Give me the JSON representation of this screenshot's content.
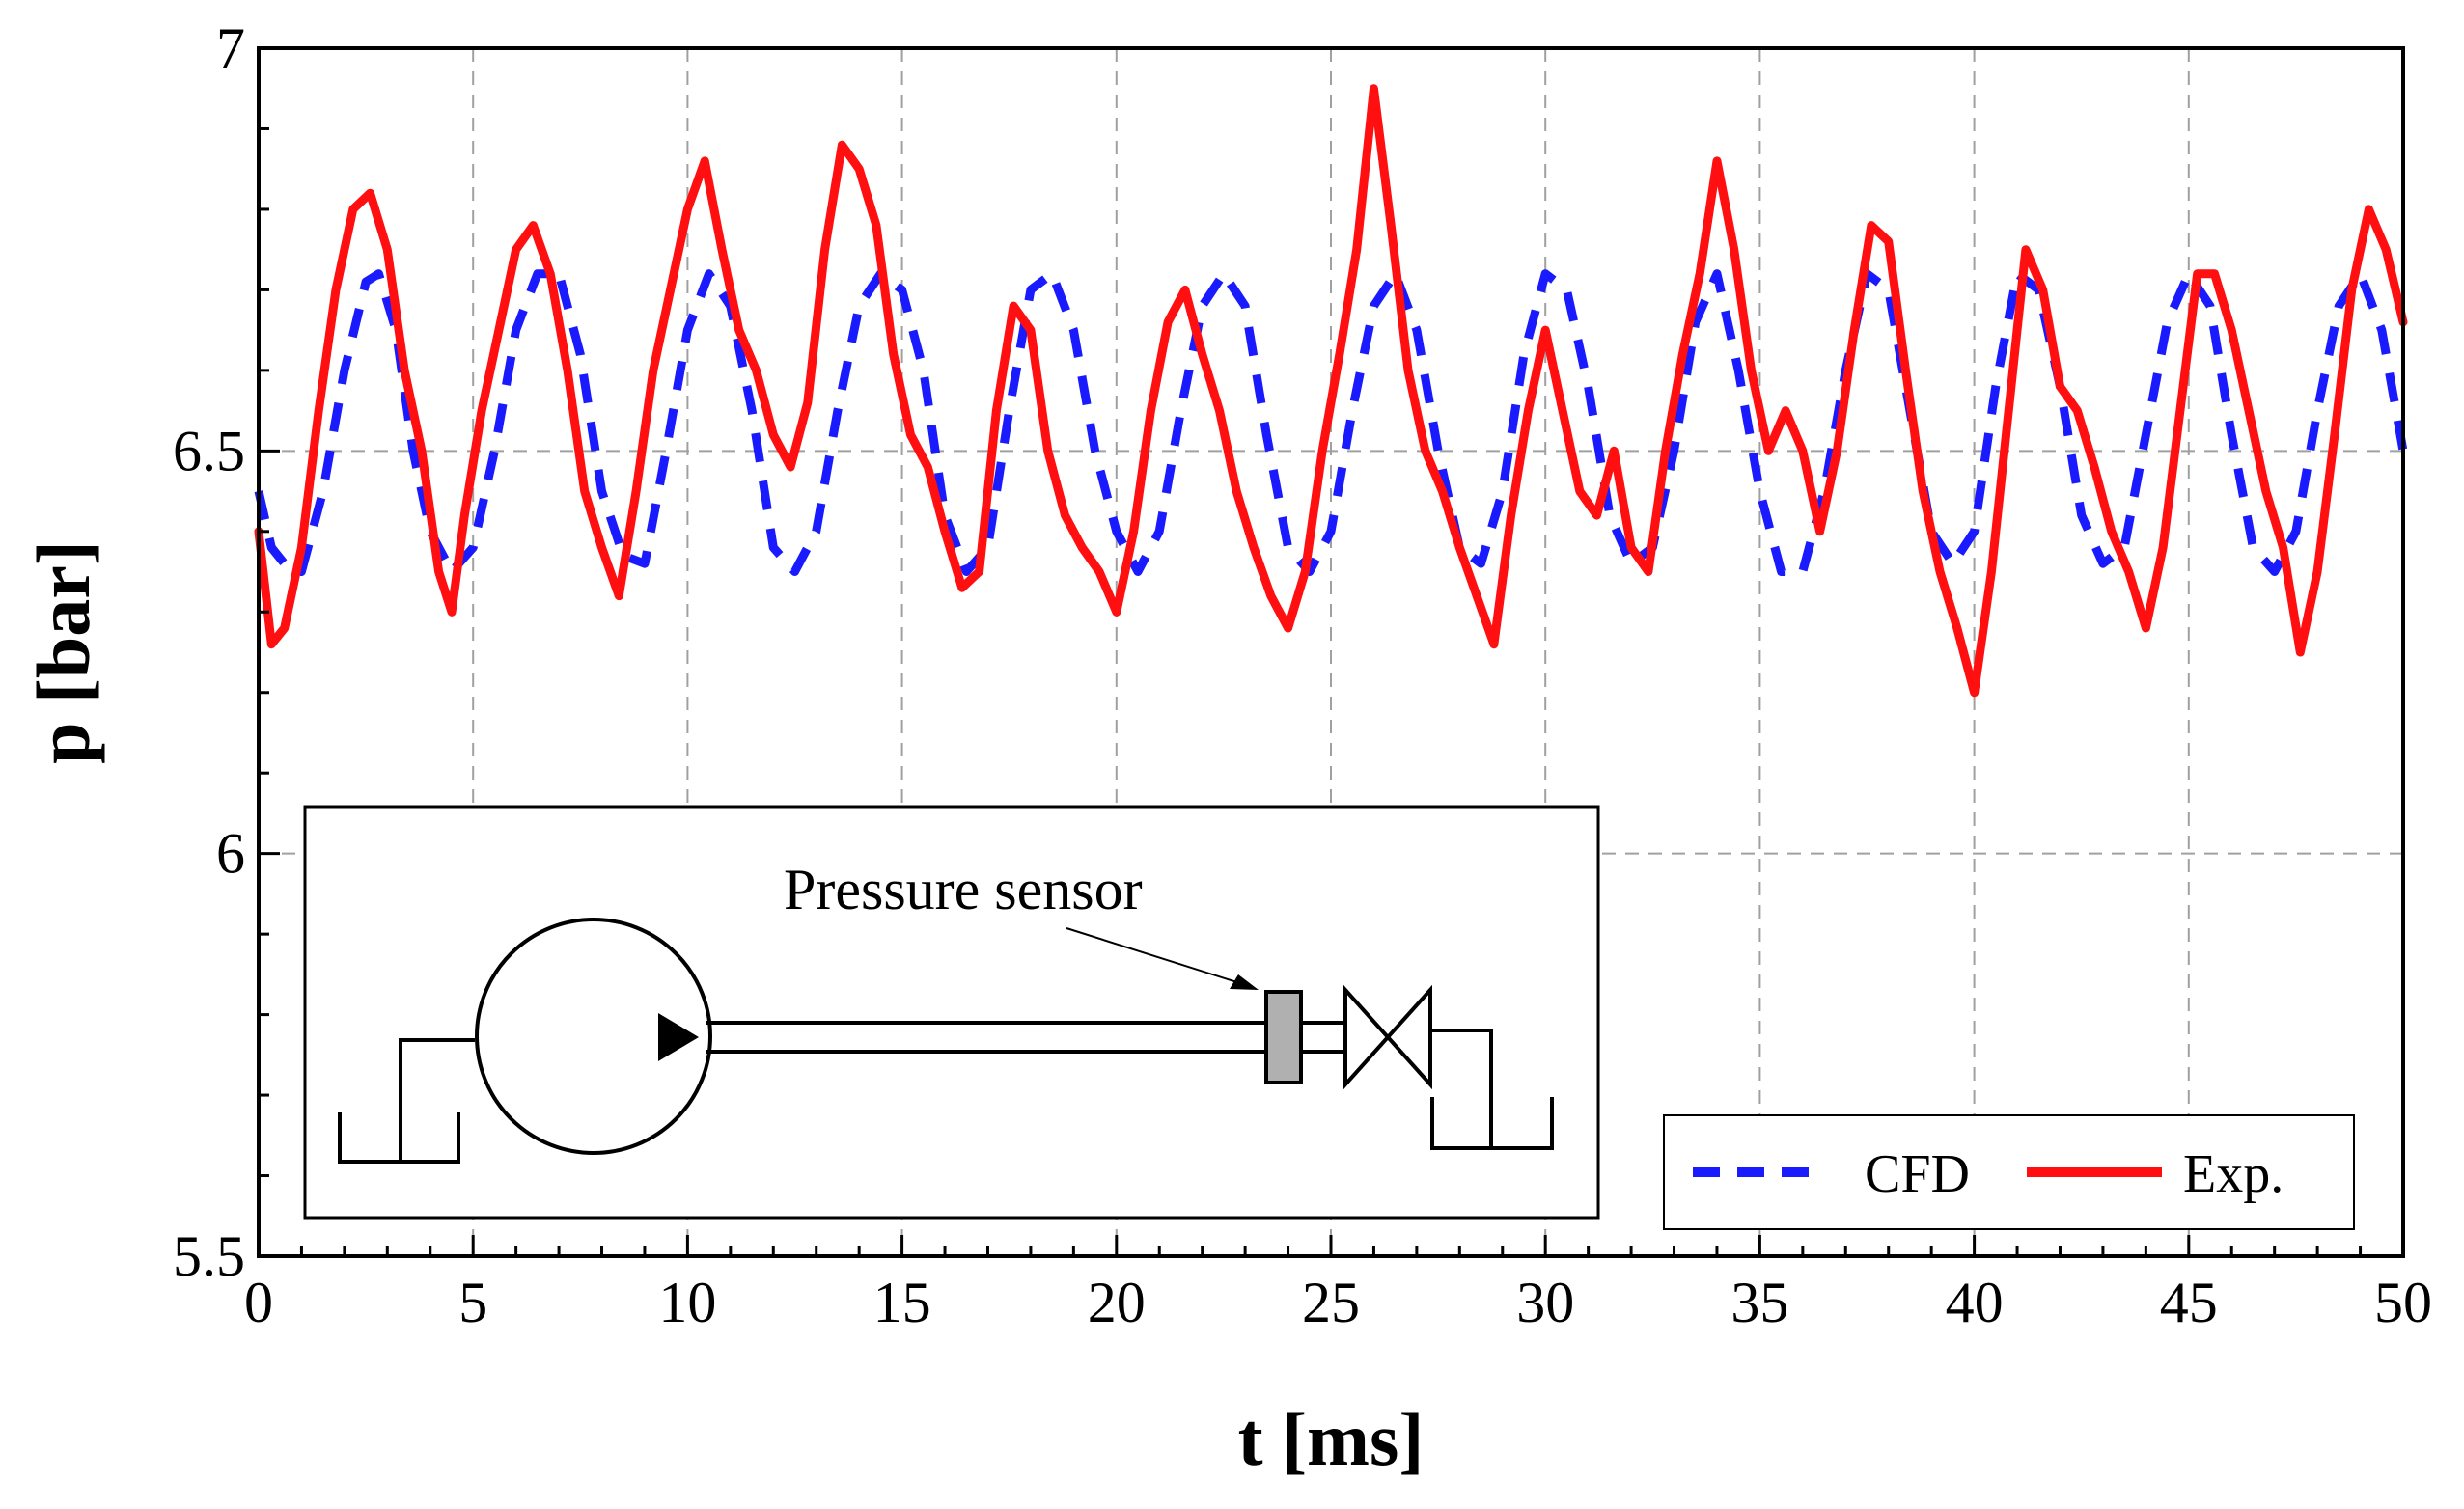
{
  "chart_data": {
    "type": "line",
    "title": "",
    "xlabel": "t [ms]",
    "ylabel": "p [bar]",
    "xlim": [
      0,
      50
    ],
    "ylim": [
      5.5,
      7
    ],
    "x_ticks": [
      "0",
      "5",
      "10",
      "15",
      "20",
      "25",
      "30",
      "35",
      "40",
      "45",
      "50"
    ],
    "y_ticks": [
      "5.5",
      "6",
      "6.5",
      "7"
    ],
    "grid": "dashed gray lines at major ticks",
    "legend_position": "bottom-right",
    "series": [
      {
        "name": "CFD",
        "color": "#1a1aff",
        "style": "dashed",
        "x": [
          0,
          0.3,
          0.6,
          1.0,
          1.5,
          2.0,
          2.5,
          2.8,
          3.2,
          3.6,
          4.0,
          4.5,
          5.0,
          5.5,
          6.0,
          6.5,
          7.0,
          7.5,
          8.0,
          8.5,
          9.0,
          9.5,
          10.0,
          10.5,
          11.0,
          11.5,
          12.0,
          12.5,
          13.0,
          13.5,
          14.0,
          14.5,
          15.0,
          15.5,
          16.0,
          16.5,
          17.0,
          17.5,
          18.0,
          18.5,
          19.0,
          19.5,
          20.0,
          20.5,
          21.0,
          21.5,
          22.0,
          22.5,
          23.0,
          23.5,
          24.0,
          24.5,
          25.0,
          25.5,
          26.0,
          26.5,
          27.0,
          27.5,
          28.0,
          28.5,
          29.0,
          29.5,
          30.0,
          30.5,
          31.0,
          31.5,
          32.0,
          32.5,
          33.0,
          33.5,
          34.0,
          34.5,
          35.0,
          35.5,
          36.0,
          36.5,
          37.0,
          37.5,
          38.0,
          38.5,
          39.0,
          39.5,
          40.0,
          40.5,
          41.0,
          41.5,
          42.0,
          42.5,
          43.0,
          43.5,
          44.0,
          44.5,
          45.0,
          45.5,
          46.0,
          46.5,
          47.0,
          47.5,
          48.0,
          48.5,
          49.0,
          49.5,
          50.0
        ],
        "values": [
          6.45,
          6.38,
          6.36,
          6.35,
          6.45,
          6.6,
          6.71,
          6.72,
          6.65,
          6.5,
          6.4,
          6.35,
          6.38,
          6.5,
          6.65,
          6.72,
          6.72,
          6.62,
          6.45,
          6.37,
          6.36,
          6.5,
          6.65,
          6.72,
          6.68,
          6.55,
          6.38,
          6.35,
          6.4,
          6.55,
          6.68,
          6.72,
          6.7,
          6.6,
          6.42,
          6.35,
          6.38,
          6.55,
          6.7,
          6.72,
          6.65,
          6.5,
          6.4,
          6.35,
          6.4,
          6.55,
          6.68,
          6.72,
          6.68,
          6.52,
          6.38,
          6.35,
          6.4,
          6.55,
          6.68,
          6.72,
          6.65,
          6.5,
          6.38,
          6.36,
          6.45,
          6.62,
          6.72,
          6.7,
          6.58,
          6.42,
          6.36,
          6.38,
          6.5,
          6.66,
          6.72,
          6.6,
          6.45,
          6.35,
          6.35,
          6.45,
          6.6,
          6.72,
          6.7,
          6.55,
          6.4,
          6.36,
          6.4,
          6.58,
          6.72,
          6.7,
          6.58,
          6.42,
          6.36,
          6.38,
          6.52,
          6.66,
          6.72,
          6.68,
          6.52,
          6.38,
          6.35,
          6.4,
          6.55,
          6.68,
          6.72,
          6.65,
          6.5
        ]
      },
      {
        "name": "Exp.",
        "color": "#ff0f0f",
        "style": "solid",
        "x": [
          0,
          0.3,
          0.6,
          1.0,
          1.4,
          1.8,
          2.2,
          2.6,
          3.0,
          3.4,
          3.8,
          4.2,
          4.5,
          4.8,
          5.2,
          5.6,
          6.0,
          6.4,
          6.8,
          7.2,
          7.6,
          8.0,
          8.4,
          8.8,
          9.2,
          9.6,
          10.0,
          10.4,
          10.8,
          11.2,
          11.6,
          12.0,
          12.4,
          12.8,
          13.2,
          13.6,
          14.0,
          14.4,
          14.8,
          15.2,
          15.6,
          16.0,
          16.4,
          16.8,
          17.2,
          17.6,
          18.0,
          18.4,
          18.8,
          19.2,
          19.6,
          20.0,
          20.4,
          20.8,
          21.2,
          21.6,
          22.0,
          22.4,
          22.8,
          23.2,
          23.6,
          24.0,
          24.4,
          24.8,
          25.2,
          25.6,
          26.0,
          26.4,
          26.8,
          27.2,
          27.6,
          28.0,
          28.4,
          28.8,
          29.2,
          29.6,
          30.0,
          30.4,
          30.8,
          31.2,
          31.6,
          32.0,
          32.4,
          32.8,
          33.2,
          33.6,
          34.0,
          34.4,
          34.8,
          35.2,
          35.6,
          36.0,
          36.4,
          36.8,
          37.2,
          37.6,
          38.0,
          38.4,
          38.8,
          39.2,
          39.6,
          40.0,
          40.4,
          40.8,
          41.2,
          41.6,
          42.0,
          42.4,
          42.8,
          43.2,
          43.6,
          44.0,
          44.4,
          44.8,
          45.2,
          45.6,
          46.0,
          46.4,
          46.8,
          47.2,
          47.6,
          48.0,
          48.4,
          48.8,
          49.2,
          49.6,
          50.0
        ],
        "values": [
          6.4,
          6.26,
          6.28,
          6.38,
          6.55,
          6.7,
          6.8,
          6.82,
          6.75,
          6.6,
          6.5,
          6.35,
          6.3,
          6.42,
          6.55,
          6.65,
          6.75,
          6.78,
          6.72,
          6.6,
          6.45,
          6.38,
          6.32,
          6.45,
          6.6,
          6.7,
          6.8,
          6.86,
          6.75,
          6.65,
          6.6,
          6.52,
          6.48,
          6.56,
          6.75,
          6.88,
          6.85,
          6.78,
          6.62,
          6.52,
          6.48,
          6.4,
          6.33,
          6.35,
          6.55,
          6.68,
          6.65,
          6.5,
          6.42,
          6.38,
          6.35,
          6.3,
          6.4,
          6.55,
          6.66,
          6.7,
          6.62,
          6.55,
          6.45,
          6.38,
          6.32,
          6.28,
          6.35,
          6.5,
          6.62,
          6.75,
          6.95,
          6.78,
          6.6,
          6.5,
          6.45,
          6.38,
          6.32,
          6.26,
          6.42,
          6.55,
          6.65,
          6.55,
          6.45,
          6.42,
          6.5,
          6.38,
          6.35,
          6.5,
          6.62,
          6.72,
          6.86,
          6.75,
          6.6,
          6.5,
          6.55,
          6.5,
          6.4,
          6.5,
          6.65,
          6.78,
          6.76,
          6.6,
          6.45,
          6.35,
          6.28,
          6.2,
          6.35,
          6.55,
          6.75,
          6.7,
          6.58,
          6.55,
          6.48,
          6.4,
          6.35,
          6.28,
          6.38,
          6.55,
          6.72,
          6.72,
          6.65,
          6.55,
          6.45,
          6.38,
          6.25,
          6.35,
          6.52,
          6.7,
          6.8,
          6.75,
          6.66
        ]
      }
    ],
    "annotations": [
      "Pressure sensor"
    ]
  },
  "colors": {
    "cfd": "#1a1aff",
    "exp": "#ff0f0f",
    "grid": "#a0a0a0",
    "sensor_fill": "#b0b0b0"
  }
}
